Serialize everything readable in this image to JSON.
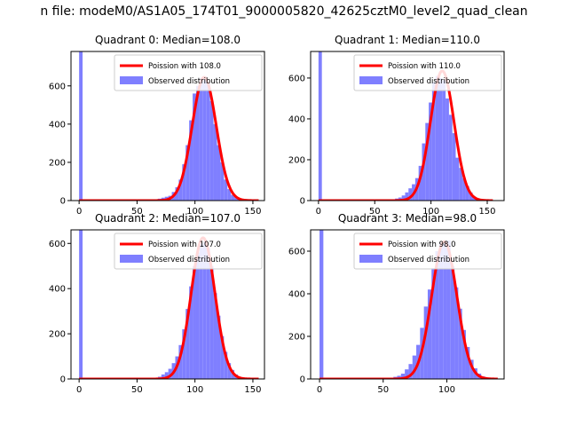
{
  "figure": {
    "suptitle": "n file: modeM0/AS1A05_174T01_9000005820_42625cztM0_level2_quad_clean"
  },
  "colors": {
    "hist": "#7f7fff",
    "fit": "#ff0000",
    "legend_border": "#cccccc"
  },
  "chart_data": [
    {
      "type": "bar",
      "title": "Quadrant 0: Median=108.0",
      "xlim": [
        -7,
        160
      ],
      "ylim": [
        0,
        780
      ],
      "xticks": [
        0,
        50,
        100,
        150
      ],
      "yticks": [
        0,
        200,
        400,
        600
      ],
      "legend": [
        "Poission with 108.0",
        "Observed distribution"
      ],
      "legend_position": "upper right",
      "spike": {
        "x": 0,
        "value": 780
      },
      "bins": {
        "x": [
          65,
          68,
          71,
          74,
          77,
          80,
          83,
          86,
          89,
          92,
          95,
          98,
          101,
          104,
          107,
          110,
          113,
          116,
          119,
          122,
          125,
          128,
          131,
          134,
          137,
          140,
          143,
          146
        ],
        "values": [
          5,
          10,
          15,
          20,
          25,
          45,
          70,
          110,
          190,
          290,
          420,
          560,
          600,
          640,
          650,
          620,
          520,
          400,
          290,
          200,
          110,
          60,
          30,
          20,
          10,
          5,
          3,
          2
        ]
      },
      "fit": {
        "label": "Poission with 108.0",
        "mu": 108,
        "peak": 645,
        "sigma": 10.4,
        "x_range": [
          0,
          155
        ]
      }
    },
    {
      "type": "bar",
      "title": "Quadrant 1: Median=110.0",
      "xlim": [
        -7,
        165
      ],
      "ylim": [
        0,
        730
      ],
      "xticks": [
        0,
        50,
        100,
        150
      ],
      "yticks": [
        0,
        200,
        400,
        600
      ],
      "legend": [
        "Poission with 110.0",
        "Observed distribution"
      ],
      "legend_position": "upper right",
      "spike": {
        "x": 0,
        "value": 730
      },
      "bins": {
        "x": [
          65,
          68,
          71,
          74,
          77,
          80,
          83,
          86,
          89,
          92,
          95,
          98,
          101,
          104,
          107,
          110,
          113,
          116,
          119,
          122,
          125,
          128,
          131,
          134,
          137,
          140,
          143,
          146,
          149
        ],
        "values": [
          5,
          10,
          15,
          25,
          40,
          60,
          80,
          110,
          170,
          280,
          380,
          480,
          580,
          610,
          600,
          590,
          500,
          420,
          330,
          210,
          160,
          110,
          70,
          40,
          20,
          10,
          5,
          3,
          2
        ]
      },
      "fit": {
        "label": "Poission with 110.0",
        "mu": 110,
        "peak": 635,
        "sigma": 10.5,
        "x_range": [
          0,
          155
        ]
      }
    },
    {
      "type": "bar",
      "title": "Quadrant 2: Median=107.0",
      "xlim": [
        -7,
        160
      ],
      "ylim": [
        0,
        660
      ],
      "xticks": [
        0,
        50,
        100,
        150
      ],
      "yticks": [
        0,
        200,
        400,
        600
      ],
      "legend": [
        "Poission with 107.0",
        "Observed distribution"
      ],
      "legend_position": "upper right",
      "spike": {
        "x": 0,
        "value": 660
      },
      "bins": {
        "x": [
          65,
          68,
          71,
          74,
          77,
          80,
          83,
          86,
          89,
          92,
          95,
          98,
          101,
          104,
          107,
          110,
          113,
          116,
          119,
          122,
          125,
          128,
          131,
          134,
          137,
          140,
          143,
          146
        ],
        "values": [
          5,
          10,
          20,
          30,
          45,
          70,
          100,
          150,
          220,
          310,
          410,
          500,
          560,
          600,
          610,
          580,
          500,
          380,
          280,
          190,
          120,
          70,
          40,
          20,
          10,
          5,
          3,
          2
        ]
      },
      "fit": {
        "label": "Poission with 107.0",
        "mu": 107,
        "peak": 625,
        "sigma": 10.3,
        "x_range": [
          0,
          155
        ]
      }
    },
    {
      "type": "bar",
      "title": "Quadrant 3: Median=98.0",
      "xlim": [
        -7,
        145
      ],
      "ylim": [
        0,
        700
      ],
      "xticks": [
        0,
        50,
        100
      ],
      "yticks": [
        0,
        200,
        400,
        600
      ],
      "legend": [
        "Poission with 98.0",
        "Observed distribution"
      ],
      "legend_position": "upper right",
      "spike": {
        "x": 0,
        "value": 700
      },
      "bins": {
        "x": [
          55,
          58,
          61,
          64,
          67,
          70,
          73,
          76,
          79,
          82,
          85,
          88,
          91,
          94,
          97,
          100,
          103,
          106,
          109,
          112,
          115,
          118,
          121,
          124,
          127,
          130,
          133,
          136
        ],
        "values": [
          5,
          10,
          15,
          25,
          45,
          70,
          110,
          160,
          240,
          340,
          420,
          520,
          600,
          640,
          640,
          650,
          530,
          430,
          330,
          230,
          150,
          90,
          50,
          25,
          12,
          6,
          3,
          2
        ]
      },
      "fit": {
        "label": "Poission with 98.0",
        "mu": 98,
        "peak": 645,
        "sigma": 9.9,
        "x_range": [
          0,
          140
        ]
      }
    }
  ]
}
